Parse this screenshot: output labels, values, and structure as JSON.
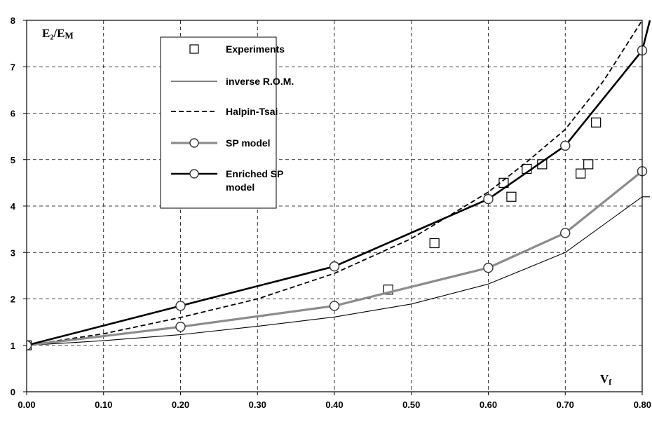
{
  "chart_data": {
    "type": "line",
    "title": "",
    "ylabel": "E₂/E",
    "ylabel_sub": "M",
    "xlabel": "V",
    "xlabel_sub": "f",
    "xlim": [
      0,
      0.8
    ],
    "ylim": [
      0,
      8
    ],
    "x_ticks": [
      "0.00",
      "0.10",
      "0.20",
      "0.30",
      "0.40",
      "0.50",
      "0.60",
      "0.70",
      "0.80"
    ],
    "y_ticks": [
      "0",
      "1",
      "2",
      "3",
      "4",
      "5",
      "6",
      "7",
      "8"
    ],
    "grid": true,
    "legend_position": "top-left",
    "series": [
      {
        "name": "Experiments",
        "style": "marker-square",
        "color": "#000000",
        "x": [
          0.0,
          0.47,
          0.53,
          0.62,
          0.63,
          0.65,
          0.67,
          0.72,
          0.73,
          0.74
        ],
        "y": [
          1.0,
          2.2,
          3.2,
          4.5,
          4.2,
          4.8,
          4.9,
          4.7,
          4.9,
          5.8
        ]
      },
      {
        "name": "inverse R.O.M.",
        "style": "thin-solid",
        "color": "#000000",
        "x": [
          0.0,
          0.1,
          0.2,
          0.3,
          0.4,
          0.5,
          0.6,
          0.7,
          0.8,
          0.81
        ],
        "y": [
          1.0,
          1.1,
          1.23,
          1.41,
          1.61,
          1.89,
          2.32,
          3.0,
          4.2,
          4.2
        ]
      },
      {
        "name": "Halpin-Tsai",
        "style": "dashed",
        "color": "#000000",
        "x": [
          0.0,
          0.1,
          0.2,
          0.3,
          0.4,
          0.5,
          0.6,
          0.65,
          0.7,
          0.75,
          0.8
        ],
        "y": [
          1.0,
          1.25,
          1.6,
          2.0,
          2.55,
          3.3,
          4.3,
          4.95,
          5.65,
          6.7,
          8.0
        ]
      },
      {
        "name": "SP model",
        "style": "thick-gray-circle",
        "color": "#8c8c8c",
        "x": [
          0.0,
          0.2,
          0.4,
          0.6,
          0.7,
          0.8
        ],
        "y": [
          1.0,
          1.4,
          1.85,
          2.67,
          3.42,
          4.75
        ]
      },
      {
        "name": "Enriched SP\nmodel",
        "legend_lines": [
          "Enriched SP",
          "model"
        ],
        "style": "thick-black-circle",
        "color": "#000000",
        "x": [
          0.0,
          0.2,
          0.4,
          0.6,
          0.7,
          0.8,
          0.81
        ],
        "y": [
          1.0,
          1.85,
          2.7,
          4.15,
          5.3,
          7.35,
          8.0
        ]
      }
    ]
  }
}
